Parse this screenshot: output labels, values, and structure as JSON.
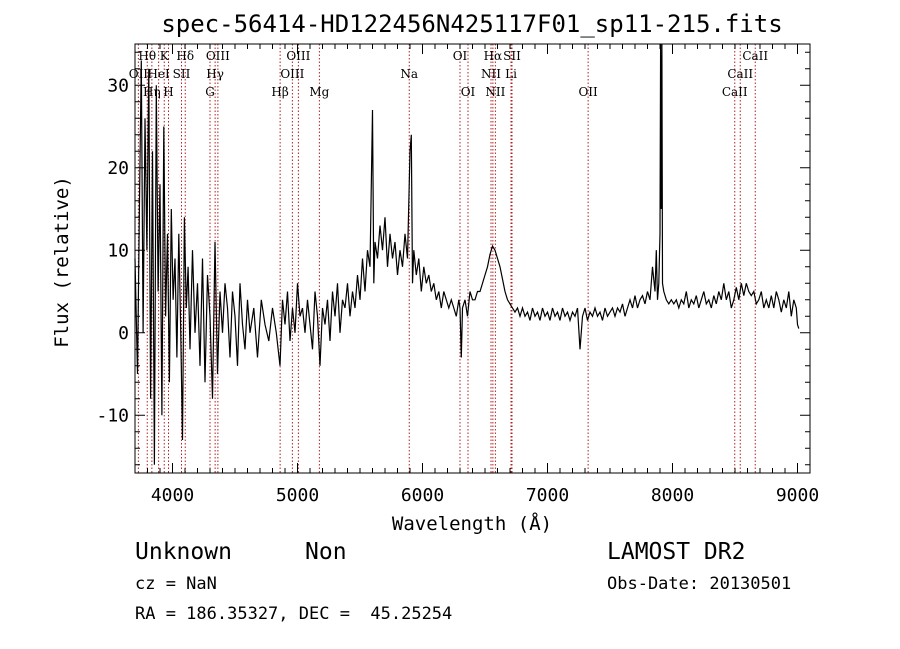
{
  "chart_data": {
    "type": "line",
    "title": "spec-56414-HD122456N425117F01_sp11-215.fits",
    "xlabel": "Wavelength (Å)",
    "ylabel": "Flux (relative)",
    "xlim": [
      3700,
      9100
    ],
    "ylim": [
      -17,
      35
    ],
    "xticks": [
      "4000",
      "5000",
      "6000",
      "7000",
      "8000",
      "9000"
    ],
    "xtick_values": [
      4000,
      5000,
      6000,
      7000,
      8000,
      9000
    ],
    "yticks": [
      "-10",
      "0",
      "10",
      "20",
      "30"
    ],
    "ytick_values": [
      -10,
      0,
      10,
      20,
      30
    ],
    "grid": false,
    "line_color": "#000000",
    "marker_color": "#b22222",
    "series": [
      {
        "points": [
          [
            3700,
            9
          ],
          [
            3720,
            -5
          ],
          [
            3735,
            15
          ],
          [
            3750,
            33
          ],
          [
            3765,
            0
          ],
          [
            3780,
            26
          ],
          [
            3795,
            10
          ],
          [
            3810,
            32
          ],
          [
            3825,
            -8
          ],
          [
            3840,
            22
          ],
          [
            3855,
            -16
          ],
          [
            3870,
            30
          ],
          [
            3885,
            5
          ],
          [
            3900,
            18
          ],
          [
            3915,
            -10
          ],
          [
            3930,
            25
          ],
          [
            3945,
            2
          ],
          [
            3960,
            12
          ],
          [
            3975,
            -6
          ],
          [
            3990,
            15
          ],
          [
            4005,
            4
          ],
          [
            4020,
            9
          ],
          [
            4035,
            -3
          ],
          [
            4050,
            12
          ],
          [
            4065,
            1
          ],
          [
            4080,
            -13
          ],
          [
            4095,
            14
          ],
          [
            4110,
            3
          ],
          [
            4125,
            8
          ],
          [
            4140,
            -2
          ],
          [
            4160,
            10
          ],
          [
            4180,
            0
          ],
          [
            4200,
            6
          ],
          [
            4220,
            -4
          ],
          [
            4240,
            9
          ],
          [
            4260,
            -6
          ],
          [
            4280,
            7
          ],
          [
            4300,
            2
          ],
          [
            4320,
            -8
          ],
          [
            4340,
            11
          ],
          [
            4360,
            -5
          ],
          [
            4380,
            5
          ],
          [
            4400,
            0
          ],
          [
            4420,
            6
          ],
          [
            4440,
            3
          ],
          [
            4460,
            -3
          ],
          [
            4480,
            5
          ],
          [
            4500,
            2
          ],
          [
            4520,
            -4
          ],
          [
            4540,
            6
          ],
          [
            4560,
            1
          ],
          [
            4580,
            -2
          ],
          [
            4600,
            4
          ],
          [
            4620,
            0
          ],
          [
            4650,
            3
          ],
          [
            4680,
            -3
          ],
          [
            4710,
            4
          ],
          [
            4740,
            1
          ],
          [
            4770,
            -1
          ],
          [
            4800,
            3
          ],
          [
            4830,
            0
          ],
          [
            4860,
            -4
          ],
          [
            4880,
            4
          ],
          [
            4900,
            1
          ],
          [
            4920,
            5
          ],
          [
            4940,
            -1
          ],
          [
            4960,
            3
          ],
          [
            4980,
            0
          ],
          [
            5000,
            6
          ],
          [
            5020,
            2
          ],
          [
            5040,
            3
          ],
          [
            5060,
            0
          ],
          [
            5080,
            4
          ],
          [
            5100,
            1
          ],
          [
            5120,
            -2
          ],
          [
            5140,
            5
          ],
          [
            5160,
            2
          ],
          [
            5180,
            -4
          ],
          [
            5200,
            3
          ],
          [
            5220,
            1
          ],
          [
            5240,
            4
          ],
          [
            5260,
            -1
          ],
          [
            5280,
            5
          ],
          [
            5300,
            2
          ],
          [
            5320,
            6
          ],
          [
            5340,
            0
          ],
          [
            5360,
            4
          ],
          [
            5380,
            3
          ],
          [
            5400,
            6
          ],
          [
            5420,
            2
          ],
          [
            5440,
            5
          ],
          [
            5460,
            3
          ],
          [
            5480,
            7
          ],
          [
            5500,
            4
          ],
          [
            5520,
            9
          ],
          [
            5540,
            5
          ],
          [
            5560,
            10
          ],
          [
            5580,
            8
          ],
          [
            5600,
            27
          ],
          [
            5610,
            6
          ],
          [
            5620,
            11
          ],
          [
            5640,
            9
          ],
          [
            5660,
            13
          ],
          [
            5680,
            10
          ],
          [
            5700,
            14
          ],
          [
            5720,
            8
          ],
          [
            5740,
            12
          ],
          [
            5760,
            9
          ],
          [
            5780,
            11
          ],
          [
            5800,
            7
          ],
          [
            5820,
            10
          ],
          [
            5840,
            8
          ],
          [
            5860,
            12
          ],
          [
            5880,
            9
          ],
          [
            5900,
            22
          ],
          [
            5910,
            24
          ],
          [
            5920,
            6
          ],
          [
            5930,
            10
          ],
          [
            5950,
            7
          ],
          [
            5970,
            9
          ],
          [
            5990,
            5
          ],
          [
            6010,
            8
          ],
          [
            6030,
            6
          ],
          [
            6050,
            7
          ],
          [
            6070,
            5
          ],
          [
            6090,
            6
          ],
          [
            6110,
            4
          ],
          [
            6130,
            5
          ],
          [
            6150,
            3
          ],
          [
            6170,
            5
          ],
          [
            6190,
            4
          ],
          [
            6210,
            3
          ],
          [
            6230,
            4
          ],
          [
            6250,
            3
          ],
          [
            6270,
            2
          ],
          [
            6290,
            4
          ],
          [
            6300,
            3
          ],
          [
            6310,
            -3
          ],
          [
            6320,
            3
          ],
          [
            6340,
            4
          ],
          [
            6360,
            2
          ],
          [
            6380,
            5
          ],
          [
            6400,
            4
          ],
          [
            6420,
            4
          ],
          [
            6440,
            5
          ],
          [
            6460,
            5
          ],
          [
            6480,
            6
          ],
          [
            6500,
            7
          ],
          [
            6520,
            8
          ],
          [
            6540,
            9.5
          ],
          [
            6560,
            10.5
          ],
          [
            6580,
            10
          ],
          [
            6600,
            9
          ],
          [
            6620,
            8
          ],
          [
            6640,
            6.5
          ],
          [
            6660,
            5
          ],
          [
            6680,
            4
          ],
          [
            6700,
            3.5
          ],
          [
            6720,
            3
          ],
          [
            6740,
            2.5
          ],
          [
            6760,
            3
          ],
          [
            6780,
            2
          ],
          [
            6800,
            3
          ],
          [
            6820,
            2
          ],
          [
            6840,
            2.5
          ],
          [
            6860,
            1.5
          ],
          [
            6880,
            3
          ],
          [
            6900,
            2
          ],
          [
            6920,
            2.5
          ],
          [
            6940,
            1.5
          ],
          [
            6960,
            3
          ],
          [
            6980,
            2
          ],
          [
            7000,
            2.5
          ],
          [
            7020,
            1.5
          ],
          [
            7040,
            3
          ],
          [
            7060,
            2
          ],
          [
            7080,
            2.5
          ],
          [
            7100,
            1.5
          ],
          [
            7120,
            3
          ],
          [
            7140,
            2
          ],
          [
            7160,
            2.5
          ],
          [
            7180,
            1.5
          ],
          [
            7200,
            2.5
          ],
          [
            7220,
            2
          ],
          [
            7240,
            3
          ],
          [
            7260,
            -2
          ],
          [
            7280,
            2
          ],
          [
            7300,
            3
          ],
          [
            7320,
            1.5
          ],
          [
            7340,
            2.5
          ],
          [
            7360,
            2
          ],
          [
            7380,
            3
          ],
          [
            7400,
            2
          ],
          [
            7420,
            2.5
          ],
          [
            7440,
            1.5
          ],
          [
            7460,
            3
          ],
          [
            7480,
            2
          ],
          [
            7500,
            2.5
          ],
          [
            7520,
            3
          ],
          [
            7540,
            2
          ],
          [
            7560,
            3
          ],
          [
            7580,
            2.5
          ],
          [
            7600,
            3.5
          ],
          [
            7620,
            2
          ],
          [
            7640,
            3
          ],
          [
            7660,
            4
          ],
          [
            7680,
            3
          ],
          [
            7700,
            4.5
          ],
          [
            7720,
            3
          ],
          [
            7740,
            4
          ],
          [
            7760,
            4.5
          ],
          [
            7780,
            3.5
          ],
          [
            7800,
            5
          ],
          [
            7820,
            4
          ],
          [
            7840,
            8
          ],
          [
            7860,
            5
          ],
          [
            7870,
            10
          ],
          [
            7880,
            4
          ],
          [
            7890,
            6
          ],
          [
            7900,
            12
          ],
          [
            7905,
            35
          ],
          [
            7910,
            15
          ],
          [
            7915,
            35
          ],
          [
            7920,
            6
          ],
          [
            7930,
            5
          ],
          [
            7950,
            4
          ],
          [
            7970,
            3.5
          ],
          [
            7990,
            4
          ],
          [
            8010,
            3.5
          ],
          [
            8030,
            4
          ],
          [
            8050,
            3
          ],
          [
            8070,
            4
          ],
          [
            8090,
            3.5
          ],
          [
            8110,
            5
          ],
          [
            8130,
            3
          ],
          [
            8150,
            4
          ],
          [
            8170,
            3.5
          ],
          [
            8190,
            4.5
          ],
          [
            8210,
            3
          ],
          [
            8230,
            4
          ],
          [
            8250,
            5
          ],
          [
            8270,
            3.5
          ],
          [
            8290,
            4
          ],
          [
            8310,
            3
          ],
          [
            8330,
            4.5
          ],
          [
            8350,
            3.5
          ],
          [
            8370,
            5
          ],
          [
            8390,
            4
          ],
          [
            8410,
            6
          ],
          [
            8430,
            4
          ],
          [
            8450,
            5
          ],
          [
            8470,
            3
          ],
          [
            8490,
            4
          ],
          [
            8510,
            5.5
          ],
          [
            8530,
            4
          ],
          [
            8550,
            6
          ],
          [
            8570,
            4.5
          ],
          [
            8590,
            6
          ],
          [
            8610,
            5
          ],
          [
            8630,
            4.5
          ],
          [
            8650,
            5
          ],
          [
            8670,
            3.5
          ],
          [
            8690,
            4
          ],
          [
            8710,
            5
          ],
          [
            8730,
            3
          ],
          [
            8750,
            4
          ],
          [
            8770,
            3
          ],
          [
            8790,
            4.5
          ],
          [
            8810,
            3
          ],
          [
            8830,
            5
          ],
          [
            8850,
            4
          ],
          [
            8870,
            2.5
          ],
          [
            8890,
            4
          ],
          [
            8910,
            3
          ],
          [
            8930,
            5
          ],
          [
            8950,
            2
          ],
          [
            8970,
            4
          ],
          [
            8990,
            3
          ],
          [
            9000,
            1
          ],
          [
            9010,
            0.5
          ]
        ]
      }
    ],
    "line_markers": [
      {
        "wavelength": 3727,
        "label": "OII",
        "row": 2
      },
      {
        "wavelength": 3798,
        "label": "Hθ",
        "row": 1
      },
      {
        "wavelength": 3835,
        "label": "Hη",
        "row": 3
      },
      {
        "wavelength": 3889,
        "label": "HeI",
        "row": 2
      },
      {
        "wavelength": 3934,
        "label": "K",
        "row": 1
      },
      {
        "wavelength": 3968,
        "label": "H",
        "row": 3
      },
      {
        "wavelength": 4072,
        "label": "SII",
        "row": 2
      },
      {
        "wavelength": 4102,
        "label": "Hδ",
        "row": 1
      },
      {
        "wavelength": 4300,
        "label": "G",
        "row": 3
      },
      {
        "wavelength": 4341,
        "label": "Hγ",
        "row": 2
      },
      {
        "wavelength": 4363,
        "label": "OIII",
        "row": 1
      },
      {
        "wavelength": 4861,
        "label": "Hβ",
        "row": 3
      },
      {
        "wavelength": 4959,
        "label": "OIII",
        "row": 2
      },
      {
        "wavelength": 5007,
        "label": "OIII",
        "row": 1
      },
      {
        "wavelength": 5175,
        "label": "Mg",
        "row": 3
      },
      {
        "wavelength": 5894,
        "label": "Na",
        "row": 2
      },
      {
        "wavelength": 6300,
        "label": "OI",
        "row": 1
      },
      {
        "wavelength": 6364,
        "label": "OI",
        "row": 3
      },
      {
        "wavelength": 6548,
        "label": "NII",
        "row": 2
      },
      {
        "wavelength": 6563,
        "label": "Hα",
        "row": 1
      },
      {
        "wavelength": 6583,
        "label": "NII",
        "row": 3
      },
      {
        "wavelength": 6708,
        "label": "Li",
        "row": 2
      },
      {
        "wavelength": 6716,
        "label": "SII",
        "row": 1
      },
      {
        "wavelength": 7325,
        "label": "OII",
        "row": 3
      },
      {
        "wavelength": 8498,
        "label": "CaII",
        "row": 3
      },
      {
        "wavelength": 8542,
        "label": "CaII",
        "row": 2
      },
      {
        "wavelength": 8662,
        "label": "CaII",
        "row": 1
      }
    ]
  },
  "info": {
    "class_label": "Unknown",
    "subclass_label": "Non",
    "survey": "LAMOST DR2",
    "cz": "cz = NaN",
    "obs_date": "Obs-Date: 20130501",
    "coords": "RA = 186.35327, DEC =  45.25254"
  }
}
